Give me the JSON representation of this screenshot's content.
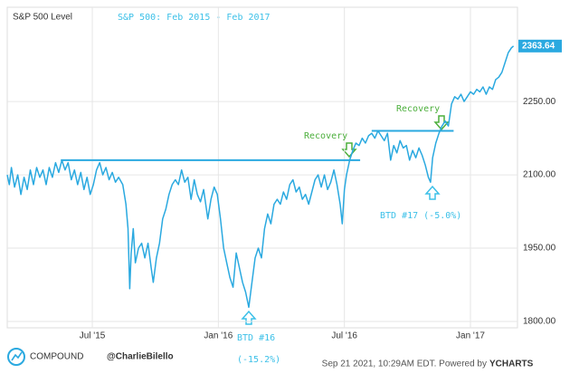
{
  "chart_data": {
    "type": "line",
    "title": "S&P 500: Feb 2015 - Feb 2017",
    "y_label": "S&P 500 Level",
    "xlim": [
      1.95,
      26.24
    ],
    "xticks": [
      {
        "value": 6,
        "label": "Jul '15"
      },
      {
        "value": 12,
        "label": "Jan '16"
      },
      {
        "value": 18,
        "label": "Jul '16"
      },
      {
        "value": 24,
        "label": "Jan '17"
      }
    ],
    "ylim": [
      1787,
      2443
    ],
    "yticks": [
      {
        "value": 1800,
        "label": "1800.00"
      },
      {
        "value": 1950,
        "label": "1950.00"
      },
      {
        "value": 2100,
        "label": "2100.00"
      },
      {
        "value": 2250,
        "label": "2250.00"
      }
    ],
    "grid": true,
    "x": [
      1.95,
      2.05,
      2.15,
      2.3,
      2.45,
      2.6,
      2.75,
      2.9,
      3.05,
      3.2,
      3.35,
      3.5,
      3.65,
      3.8,
      3.95,
      4.1,
      4.25,
      4.4,
      4.55,
      4.7,
      4.85,
      5.0,
      5.15,
      5.3,
      5.45,
      5.6,
      5.75,
      5.9,
      6.05,
      6.2,
      6.35,
      6.5,
      6.65,
      6.8,
      6.95,
      7.1,
      7.25,
      7.45,
      7.6,
      7.7,
      7.78,
      7.85,
      7.95,
      8.05,
      8.2,
      8.35,
      8.5,
      8.65,
      8.8,
      8.9,
      9.05,
      9.2,
      9.35,
      9.5,
      9.65,
      9.8,
      9.95,
      10.1,
      10.25,
      10.4,
      10.55,
      10.7,
      10.85,
      11.0,
      11.15,
      11.3,
      11.5,
      11.65,
      11.8,
      11.95,
      12.1,
      12.25,
      12.4,
      12.55,
      12.7,
      12.85,
      13.0,
      13.15,
      13.3,
      13.45,
      13.6,
      13.75,
      13.9,
      14.05,
      14.2,
      14.35,
      14.5,
      14.65,
      14.8,
      14.95,
      15.1,
      15.25,
      15.4,
      15.55,
      15.7,
      15.85,
      16.0,
      16.15,
      16.3,
      16.45,
      16.6,
      16.75,
      16.9,
      17.05,
      17.2,
      17.35,
      17.5,
      17.65,
      17.8,
      17.9,
      18.0,
      18.1,
      18.25,
      18.4,
      18.55,
      18.7,
      18.85,
      19.0,
      19.15,
      19.3,
      19.45,
      19.6,
      19.75,
      19.9,
      20.05,
      20.2,
      20.35,
      20.5,
      20.65,
      20.8,
      20.95,
      21.1,
      21.25,
      21.4,
      21.55,
      21.7,
      21.85,
      22.0,
      22.1,
      22.2,
      22.35,
      22.5,
      22.65,
      22.8,
      22.95,
      23.1,
      23.25,
      23.4,
      23.55,
      23.7,
      23.85,
      24.0,
      24.15,
      24.3,
      24.45,
      24.6,
      24.75,
      24.9,
      25.05,
      25.2,
      25.35,
      25.5,
      25.65,
      25.8,
      25.95,
      26.05
    ],
    "series": [
      {
        "name": "S&P 500 Level",
        "color": "#2aa9e0",
        "values": [
          2100,
          2080,
          2115,
          2075,
          2100,
          2060,
          2095,
          2070,
          2110,
          2080,
          2115,
          2095,
          2110,
          2080,
          2115,
          2095,
          2125,
          2105,
          2130,
          2110,
          2125,
          2090,
          2110,
          2080,
          2105,
          2070,
          2095,
          2060,
          2080,
          2110,
          2125,
          2100,
          2115,
          2090,
          2105,
          2085,
          2095,
          2080,
          2040,
          1990,
          1867,
          1940,
          1990,
          1920,
          1950,
          1960,
          1930,
          1960,
          1910,
          1880,
          1930,
          1960,
          2010,
          2030,
          2060,
          2080,
          2090,
          2080,
          2110,
          2085,
          2095,
          2050,
          2090,
          2060,
          2045,
          2070,
          2010,
          2050,
          2075,
          2060,
          2010,
          1950,
          1920,
          1890,
          1870,
          1940,
          1910,
          1880,
          1860,
          1829,
          1880,
          1930,
          1950,
          1930,
          1990,
          2020,
          2000,
          2040,
          2050,
          2040,
          2065,
          2050,
          2080,
          2090,
          2065,
          2075,
          2050,
          2060,
          2040,
          2065,
          2090,
          2100,
          2075,
          2100,
          2070,
          2085,
          2110,
          2080,
          2040,
          2000,
          2070,
          2100,
          2130,
          2150,
          2165,
          2160,
          2175,
          2165,
          2180,
          2185,
          2175,
          2190,
          2180,
          2170,
          2185,
          2130,
          2160,
          2145,
          2170,
          2155,
          2160,
          2130,
          2150,
          2135,
          2155,
          2140,
          2120,
          2095,
          2085,
          2135,
          2165,
          2185,
          2200,
          2210,
          2200,
          2245,
          2260,
          2255,
          2265,
          2250,
          2260,
          2270,
          2265,
          2275,
          2270,
          2280,
          2265,
          2280,
          2275,
          2295,
          2300,
          2310,
          2330,
          2350,
          2360,
          2363.64
        ]
      }
    ],
    "reference_lines": [
      {
        "y": 2130,
        "x": [
          4.5,
          18.75
        ]
      },
      {
        "y": 2190,
        "x": [
          19.3,
          23.2
        ]
      }
    ],
    "annotations": [
      "Recovery",
      "Recovery",
      "BTD #16",
      "(-15.2%)",
      "BTD #17 (-5.0%)"
    ],
    "footer": {
      "brand": "COMPOUND",
      "handle": "@CharlieBilello",
      "timestamp": "Sep 21 2021, 10:29AM EDT. Powered by",
      "source": "YCHARTS"
    }
  }
}
